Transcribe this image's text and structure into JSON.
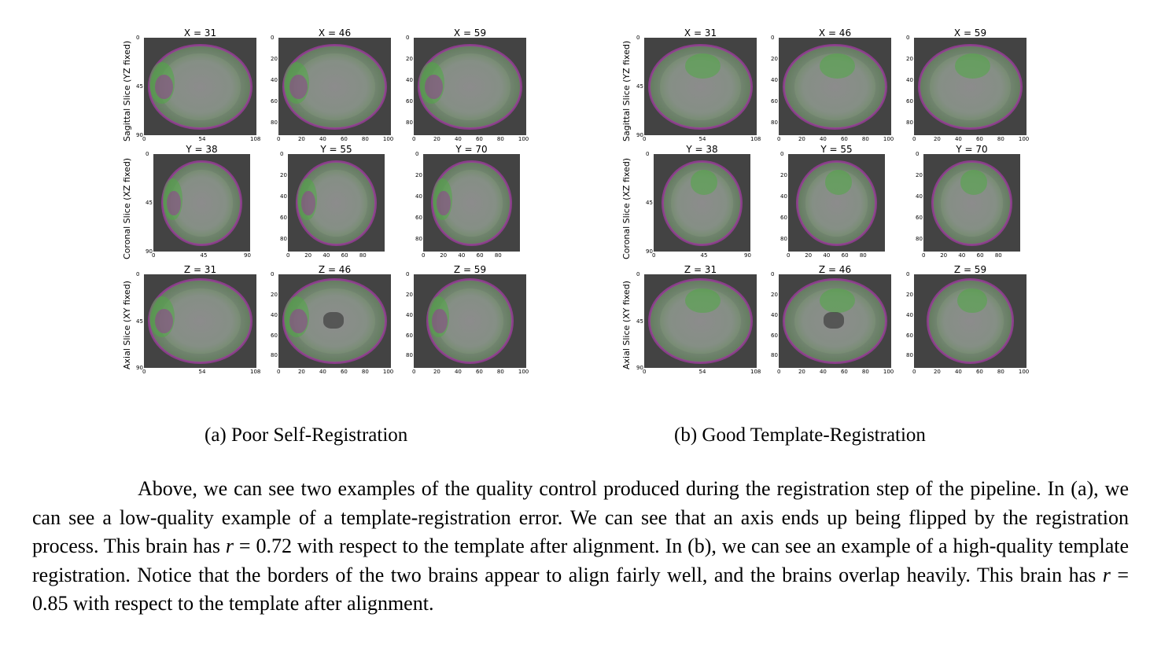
{
  "row_labels": [
    "Sagittal Slice (YZ fixed)",
    "Coronal Slice (XZ fixed)",
    "Axial Slice (XY fixed)"
  ],
  "panel_titles": {
    "sagittal": [
      "X = 31",
      "X = 46",
      "X = 59"
    ],
    "coronal": [
      "Y = 38",
      "Y = 55",
      "Y = 70"
    ],
    "axial": [
      "Z = 31",
      "Z = 46",
      "Z = 59"
    ]
  },
  "ticks": {
    "first_y": [
      "0",
      "45",
      "90"
    ],
    "first_x_sag": [
      "0",
      "54",
      "108"
    ],
    "first_x_cor": [
      "0",
      "45",
      "90"
    ],
    "first_x_ax": [
      "0",
      "54",
      "108"
    ],
    "other_y": [
      "0",
      "20",
      "40",
      "60",
      "80"
    ],
    "other_x": [
      "0",
      "20",
      "40",
      "60",
      "80",
      "100"
    ],
    "other_x_cor": [
      "0",
      "20",
      "40",
      "60",
      "80"
    ]
  },
  "subcaptions": [
    "(a) Poor Self-Registration",
    "(b) Good Template-Registration"
  ],
  "paragraph": {
    "line1": "Above, we can see two examples of the quality control produced during the registration step of the pipeline. In (a), we can see a low-quality example of a template-registration error. We can see that an axis ends up being flipped by the registration process. This brain has ",
    "r_symbol": "r",
    "eq1": " = 0.72 with respect to the template after alignment. In (b), we can see an example of a high-quality template registration. Notice that the borders of the two brains appear to align fairly well, and the brains overlap heavily. This brain has ",
    "eq2": " = 0.85 with respect to the template after alignment."
  }
}
